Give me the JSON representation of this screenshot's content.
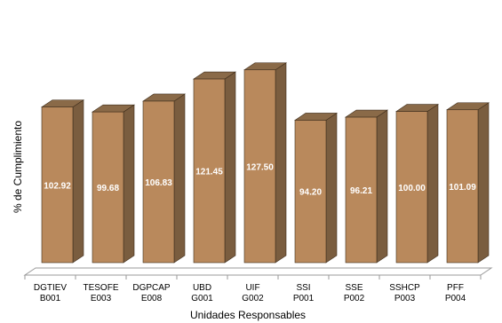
{
  "chart_data": {
    "type": "bar",
    "style": "3d-column",
    "xlabel": "Unidades Responsables",
    "ylabel": "% de Cumplimiento",
    "ylim": [
      0,
      128
    ],
    "grid": false,
    "legend": "none",
    "categories": [
      [
        "DGTIEV",
        "B001"
      ],
      [
        "TESOFE",
        "E003"
      ],
      [
        "DGPCAP",
        "E008"
      ],
      [
        "UBD",
        "G001"
      ],
      [
        "UIF",
        "G002"
      ],
      [
        "SSI",
        "P001"
      ],
      [
        "SSE",
        "P002"
      ],
      [
        "SSHCP",
        "P003"
      ],
      [
        "PFF",
        "P004"
      ]
    ],
    "values": [
      102.92,
      99.68,
      106.83,
      121.45,
      127.5,
      94.2,
      96.21,
      100.0,
      101.09
    ],
    "data_labels": [
      "102.92",
      "99.68",
      "106.83",
      "121.45",
      "127.50",
      "94.20",
      "96.21",
      "100.00",
      "101.09"
    ],
    "colors": {
      "bar_front": "#b9895c",
      "bar_side": "#7a5d3f",
      "bar_top": "#8a6a48",
      "bar_edge": "#3f2e1c",
      "floor": "#ffffff",
      "floor_edge": "#9a9a9a",
      "data_label": "#ffffff"
    }
  }
}
